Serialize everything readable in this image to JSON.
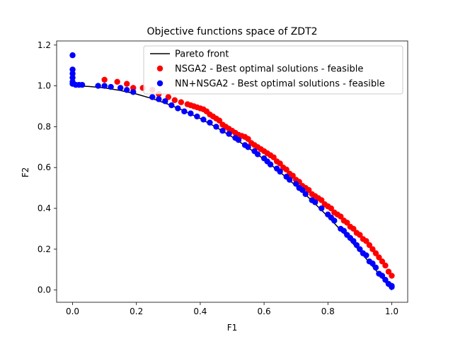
{
  "chart_data": {
    "type": "scatter",
    "title": "Objective functions space of ZDT2",
    "xlabel": "F1",
    "ylabel": "F2",
    "xlim": [
      -0.05,
      1.05
    ],
    "ylim": [
      -0.06,
      1.22
    ],
    "xticks": [
      0.0,
      0.2,
      0.4,
      0.6,
      0.8,
      1.0
    ],
    "xtick_labels": [
      "0.0",
      "0.2",
      "0.4",
      "0.6",
      "0.8",
      "1.0"
    ],
    "yticks": [
      0.0,
      0.2,
      0.4,
      0.6,
      0.8,
      1.0,
      1.2
    ],
    "ytick_labels": [
      "0.0",
      "0.2",
      "0.4",
      "0.6",
      "0.8",
      "1.0",
      "1.2"
    ],
    "grid": false,
    "legend_position": "top-right",
    "series": [
      {
        "name": "Pareto front",
        "kind": "line",
        "color": "#000000",
        "equation_label": "",
        "x": [
          0.0,
          0.05,
          0.1,
          0.15,
          0.2,
          0.25,
          0.3,
          0.35,
          0.4,
          0.45,
          0.5,
          0.55,
          0.6,
          0.65,
          0.7,
          0.75,
          0.8,
          0.85,
          0.9,
          0.95,
          1.0
        ],
        "y": [
          1.0,
          0.9975,
          0.99,
          0.9775,
          0.96,
          0.9375,
          0.91,
          0.8775,
          0.84,
          0.7975,
          0.75,
          0.6975,
          0.64,
          0.5775,
          0.51,
          0.4375,
          0.36,
          0.2775,
          0.19,
          0.0975,
          0.0
        ]
      },
      {
        "name": "NSGA2 - Best optimal solutions - feasible",
        "kind": "scatter",
        "color": "#ff0000",
        "x": [
          0.1,
          0.14,
          0.17,
          0.19,
          0.22,
          0.25,
          0.27,
          0.3,
          0.32,
          0.34,
          0.36,
          0.37,
          0.38,
          0.39,
          0.4,
          0.41,
          0.42,
          0.43,
          0.44,
          0.45,
          0.46,
          0.47,
          0.48,
          0.49,
          0.5,
          0.51,
          0.52,
          0.53,
          0.54,
          0.55,
          0.56,
          0.57,
          0.58,
          0.59,
          0.6,
          0.61,
          0.62,
          0.63,
          0.64,
          0.65,
          0.66,
          0.67,
          0.68,
          0.69,
          0.7,
          0.71,
          0.72,
          0.73,
          0.74,
          0.75,
          0.76,
          0.77,
          0.78,
          0.79,
          0.8,
          0.81,
          0.82,
          0.83,
          0.84,
          0.85,
          0.86,
          0.87,
          0.88,
          0.89,
          0.9,
          0.91,
          0.92,
          0.93,
          0.94,
          0.95,
          0.96,
          0.97,
          0.98,
          0.99,
          1.0
        ],
        "y": [
          1.03,
          1.02,
          1.01,
          0.99,
          0.99,
          0.98,
          0.96,
          0.945,
          0.93,
          0.92,
          0.91,
          0.905,
          0.9,
          0.895,
          0.89,
          0.885,
          0.875,
          0.86,
          0.85,
          0.84,
          0.83,
          0.81,
          0.8,
          0.79,
          0.78,
          0.77,
          0.76,
          0.755,
          0.75,
          0.74,
          0.72,
          0.71,
          0.7,
          0.69,
          0.68,
          0.67,
          0.66,
          0.65,
          0.63,
          0.62,
          0.6,
          0.59,
          0.57,
          0.56,
          0.54,
          0.53,
          0.51,
          0.5,
          0.49,
          0.47,
          0.46,
          0.45,
          0.44,
          0.42,
          0.41,
          0.4,
          0.38,
          0.37,
          0.36,
          0.34,
          0.33,
          0.31,
          0.3,
          0.28,
          0.27,
          0.25,
          0.24,
          0.22,
          0.2,
          0.18,
          0.16,
          0.14,
          0.12,
          0.09,
          0.07
        ]
      },
      {
        "name": "NN+NSGA2 - Best optimal solutions - feasible",
        "kind": "scatter",
        "color": "#0000ff",
        "x": [
          0.0,
          0.0,
          0.0,
          0.0,
          0.0,
          0.0,
          0.01,
          0.02,
          0.03,
          0.08,
          0.1,
          0.12,
          0.15,
          0.17,
          0.19,
          0.25,
          0.27,
          0.29,
          0.31,
          0.33,
          0.35,
          0.37,
          0.39,
          0.41,
          0.43,
          0.45,
          0.47,
          0.49,
          0.51,
          0.52,
          0.54,
          0.55,
          0.57,
          0.58,
          0.6,
          0.61,
          0.62,
          0.64,
          0.65,
          0.67,
          0.68,
          0.7,
          0.71,
          0.72,
          0.73,
          0.75,
          0.76,
          0.78,
          0.8,
          0.81,
          0.82,
          0.84,
          0.85,
          0.86,
          0.87,
          0.88,
          0.89,
          0.9,
          0.91,
          0.92,
          0.93,
          0.94,
          0.95,
          0.96,
          0.97,
          0.98,
          0.99,
          1.0,
          1.0
        ],
        "y": [
          1.15,
          1.08,
          1.06,
          1.04,
          1.02,
          1.01,
          1.005,
          1.005,
          1.005,
          1.0,
          1.0,
          0.995,
          0.99,
          0.98,
          0.97,
          0.945,
          0.935,
          0.925,
          0.905,
          0.89,
          0.875,
          0.865,
          0.85,
          0.835,
          0.82,
          0.8,
          0.78,
          0.765,
          0.745,
          0.735,
          0.71,
          0.7,
          0.68,
          0.665,
          0.645,
          0.63,
          0.615,
          0.595,
          0.58,
          0.555,
          0.54,
          0.52,
          0.5,
          0.49,
          0.47,
          0.44,
          0.43,
          0.4,
          0.37,
          0.355,
          0.34,
          0.3,
          0.29,
          0.27,
          0.255,
          0.24,
          0.22,
          0.2,
          0.18,
          0.17,
          0.14,
          0.13,
          0.11,
          0.08,
          0.07,
          0.05,
          0.03,
          0.02,
          0.015
        ]
      }
    ]
  }
}
